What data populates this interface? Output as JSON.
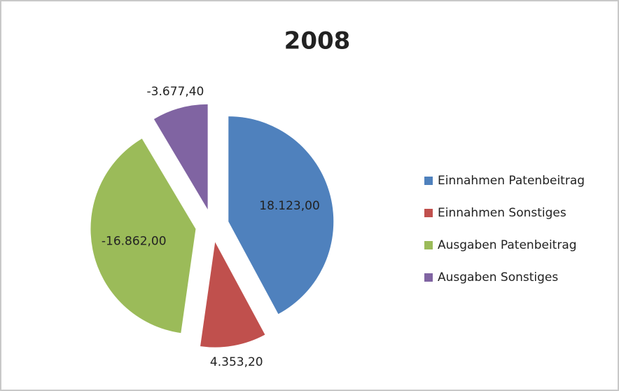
{
  "chart_data": {
    "type": "pie",
    "title": "2008",
    "categories": [
      "Einnahmen Patenbeitrag",
      "Einnahmen Sonstiges",
      "Ausgaben Patenbeitrag",
      "Ausgaben Sonstiges"
    ],
    "values": [
      18123.0,
      4353.2,
      -16862.0,
      -3677.4
    ],
    "value_labels": [
      "18.123,00",
      "4.353,20",
      "-16.862,00",
      "-3.677,40"
    ],
    "colors": [
      "#4f81bd",
      "#c0504d",
      "#9bbb59",
      "#8064a2"
    ],
    "legend": "right"
  }
}
